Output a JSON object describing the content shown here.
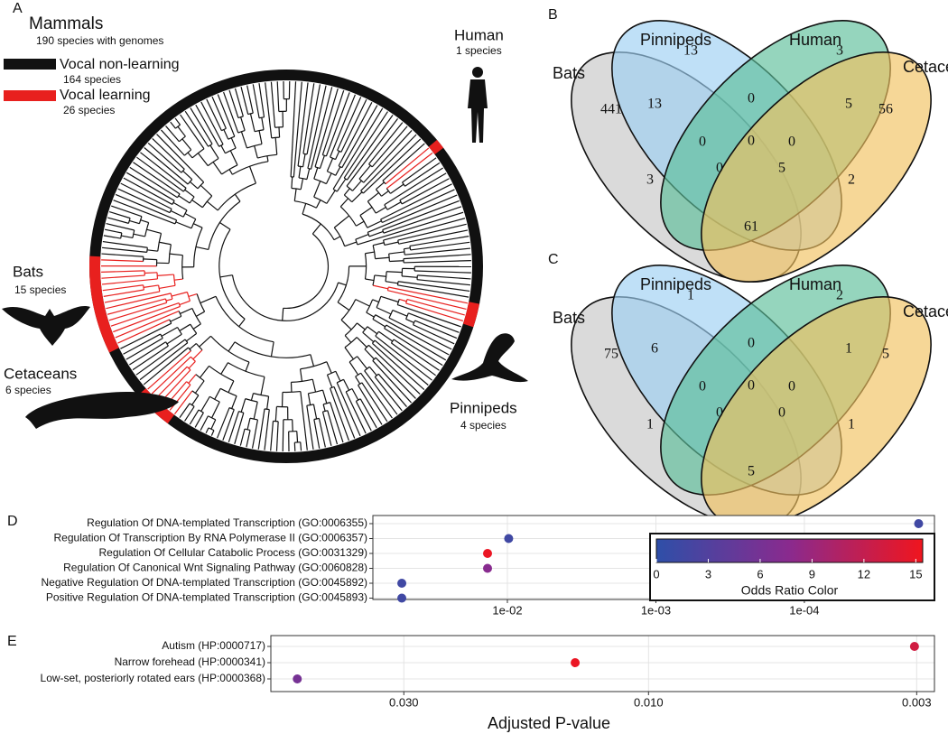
{
  "panel_A": {
    "label": "A",
    "title": "Mammals",
    "subtitle": "190 species with genomes",
    "legend": [
      {
        "name": "Vocal non-learning",
        "count": "164 species",
        "color": "#111111"
      },
      {
        "name": "Vocal learning",
        "count": "26 species",
        "color": "#e8201e"
      }
    ],
    "clades": [
      {
        "name": "Human",
        "count": "1 species"
      },
      {
        "name": "Bats",
        "count": "15 species"
      },
      {
        "name": "Cetaceans",
        "count": "6 species"
      },
      {
        "name": "Pinnipeds",
        "count": "4 species"
      }
    ]
  },
  "chart_data": [
    {
      "type": "venn",
      "label": "B",
      "sets": [
        {
          "name": "Bats",
          "color": "#c6c6c6"
        },
        {
          "name": "Pinnipeds",
          "color": "#9ccff2"
        },
        {
          "name": "Human",
          "color": "#5cbf9a"
        },
        {
          "name": "Cetaceans",
          "color": "#f1c160"
        }
      ],
      "regions": [
        {
          "sets": [
            0
          ],
          "value": 441
        },
        {
          "sets": [
            1
          ],
          "value": 13
        },
        {
          "sets": [
            2
          ],
          "value": 3
        },
        {
          "sets": [
            3
          ],
          "value": 56
        },
        {
          "sets": [
            0,
            1
          ],
          "value": 13
        },
        {
          "sets": [
            1,
            2
          ],
          "value": 0
        },
        {
          "sets": [
            2,
            3
          ],
          "value": 5
        },
        {
          "sets": [
            0,
            1,
            2
          ],
          "value": 0
        },
        {
          "sets": [
            0,
            1,
            2,
            3
          ],
          "value": 0
        },
        {
          "sets": [
            1,
            2,
            3
          ],
          "value": 0
        },
        {
          "sets": [
            0,
            2
          ],
          "value": 3
        },
        {
          "sets": [
            0,
            2,
            3
          ],
          "value": 0
        },
        {
          "sets": [
            0,
            1,
            3
          ],
          "value": 5
        },
        {
          "sets": [
            1,
            3
          ],
          "value": 2
        },
        {
          "sets": [
            0,
            3
          ],
          "value": 61
        }
      ]
    },
    {
      "type": "venn",
      "label": "C",
      "sets": [
        {
          "name": "Bats",
          "color": "#c6c6c6"
        },
        {
          "name": "Pinnipeds",
          "color": "#9ccff2"
        },
        {
          "name": "Human",
          "color": "#5cbf9a"
        },
        {
          "name": "Cetaceans",
          "color": "#f1c160"
        }
      ],
      "regions": [
        {
          "sets": [
            0
          ],
          "value": 75
        },
        {
          "sets": [
            1
          ],
          "value": 1
        },
        {
          "sets": [
            2
          ],
          "value": 2
        },
        {
          "sets": [
            3
          ],
          "value": 5
        },
        {
          "sets": [
            0,
            1
          ],
          "value": 6
        },
        {
          "sets": [
            1,
            2
          ],
          "value": 0
        },
        {
          "sets": [
            2,
            3
          ],
          "value": 1
        },
        {
          "sets": [
            0,
            1,
            2
          ],
          "value": 0
        },
        {
          "sets": [
            0,
            1,
            2,
            3
          ],
          "value": 0
        },
        {
          "sets": [
            1,
            2,
            3
          ],
          "value": 0
        },
        {
          "sets": [
            0,
            2
          ],
          "value": 1
        },
        {
          "sets": [
            0,
            2,
            3
          ],
          "value": 0
        },
        {
          "sets": [
            0,
            1,
            3
          ],
          "value": 0
        },
        {
          "sets": [
            1,
            3
          ],
          "value": 1
        },
        {
          "sets": [
            0,
            3
          ],
          "value": 5
        }
      ]
    },
    {
      "type": "dot",
      "label": "D",
      "categories": [
        "Regulation Of DNA-templated Transcription (GO:0006355)",
        "Regulation Of Transcription By RNA Polymerase II (GO:0006357)",
        "Regulation Of Cellular Catabolic Process (GO:0031329)",
        "Regulation Of Canonical Wnt Signaling Pathway (GO:0060828)",
        "Negative Regulation Of DNA-templated Transcription (GO:0045892)",
        "Positive Regulation Of DNA-templated Transcription (GO:0045893)"
      ],
      "values": [
        1.7e-05,
        0.0098,
        0.0136,
        0.0136,
        0.0514,
        0.0514
      ],
      "odds_ratio": [
        1.5,
        1.5,
        15,
        7.5,
        1.5,
        1.5
      ],
      "x_log": true,
      "xlim": [
        0.0805,
        1.33e-05
      ],
      "xticks": [
        {
          "value": 0.01,
          "label": "1e-02"
        },
        {
          "value": 0.001,
          "label": "1e-03"
        },
        {
          "value": 0.0001,
          "label": "1e-04"
        }
      ],
      "grid": true,
      "colorbar": {
        "title": "Odds Ratio Color",
        "lim": [
          0,
          15.4
        ],
        "ticks": [
          0,
          3,
          6,
          9,
          12,
          15
        ],
        "colors": [
          "#2e4fa8",
          "#8a2a8e",
          "#f0151e"
        ]
      }
    },
    {
      "type": "dot",
      "label": "E",
      "categories": [
        "Autism (HP:0000717)",
        "Narrow forehead (HP:0000341)",
        "Low-set, posteriorly rotated ears (HP:0000368)"
      ],
      "values": [
        0.00303,
        0.0139,
        0.0484
      ],
      "odds_ratio": [
        13,
        15,
        6
      ],
      "x_log": true,
      "xlim": [
        0.0545,
        0.00277
      ],
      "xticks": [
        {
          "value": 0.03,
          "label": "0.030"
        },
        {
          "value": 0.01,
          "label": "0.010"
        },
        {
          "value": 0.003,
          "label": "0.003"
        }
      ],
      "grid": true,
      "xlabel": "Adjusted P-value"
    }
  ]
}
